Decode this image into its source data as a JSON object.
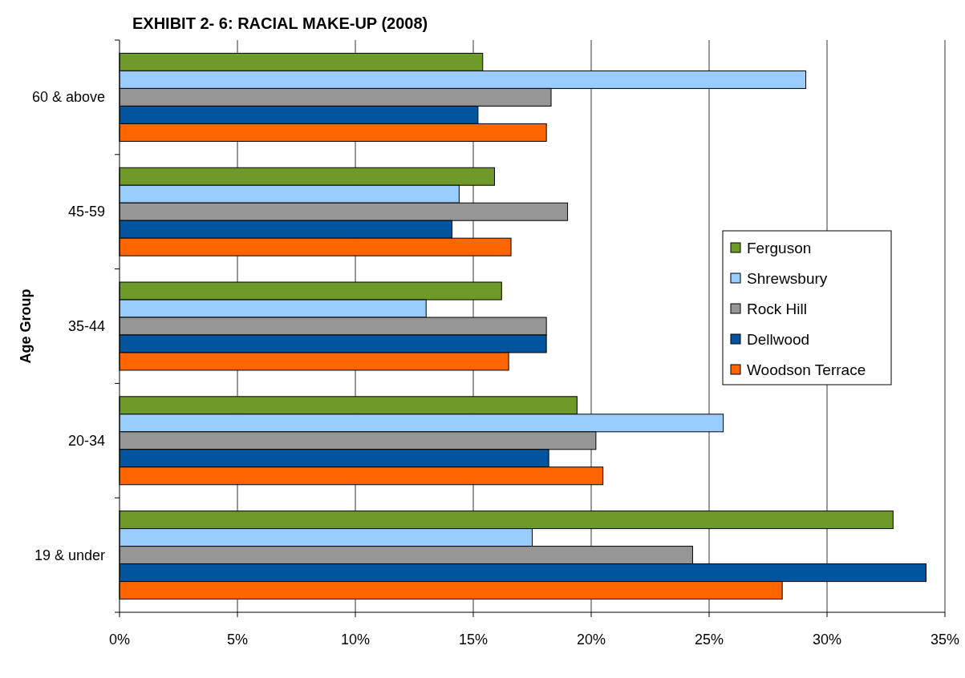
{
  "chart_data": {
    "type": "bar",
    "orientation": "horizontal",
    "title": "EXHIBIT 2- 6: RACIAL MAKE-UP (2008)",
    "ylabel": "Age Group",
    "categories": [
      "60 & above",
      "45-59",
      "35-44",
      "20-34",
      "19 & under"
    ],
    "series": [
      {
        "name": "Ferguson",
        "color": "#6e9a2a",
        "values": [
          15.4,
          15.9,
          16.2,
          19.4,
          32.8
        ]
      },
      {
        "name": "Shrewsbury",
        "color": "#99ccff",
        "values": [
          29.1,
          14.4,
          13.0,
          25.6,
          17.5
        ]
      },
      {
        "name": "Rock Hill",
        "color": "#969696",
        "values": [
          18.3,
          19.0,
          18.1,
          20.2,
          24.3
        ]
      },
      {
        "name": "Dellwood",
        "color": "#00559e",
        "values": [
          15.2,
          14.1,
          18.1,
          18.2,
          34.2
        ]
      },
      {
        "name": "Woodson Terrace",
        "color": "#ff6600",
        "values": [
          18.1,
          16.6,
          16.5,
          20.5,
          28.1
        ]
      }
    ],
    "xlim": [
      0,
      35
    ],
    "xticks": [
      {
        "value": 0,
        "label": "0%"
      },
      {
        "value": 5,
        "label": "5%"
      },
      {
        "value": 10,
        "label": "10%"
      },
      {
        "value": 15,
        "label": "15%"
      },
      {
        "value": 20,
        "label": "20%"
      },
      {
        "value": 25,
        "label": "25%"
      },
      {
        "value": 30,
        "label": "30%"
      },
      {
        "value": 35,
        "label": "35%"
      }
    ],
    "grid": "x",
    "legend": "right"
  }
}
